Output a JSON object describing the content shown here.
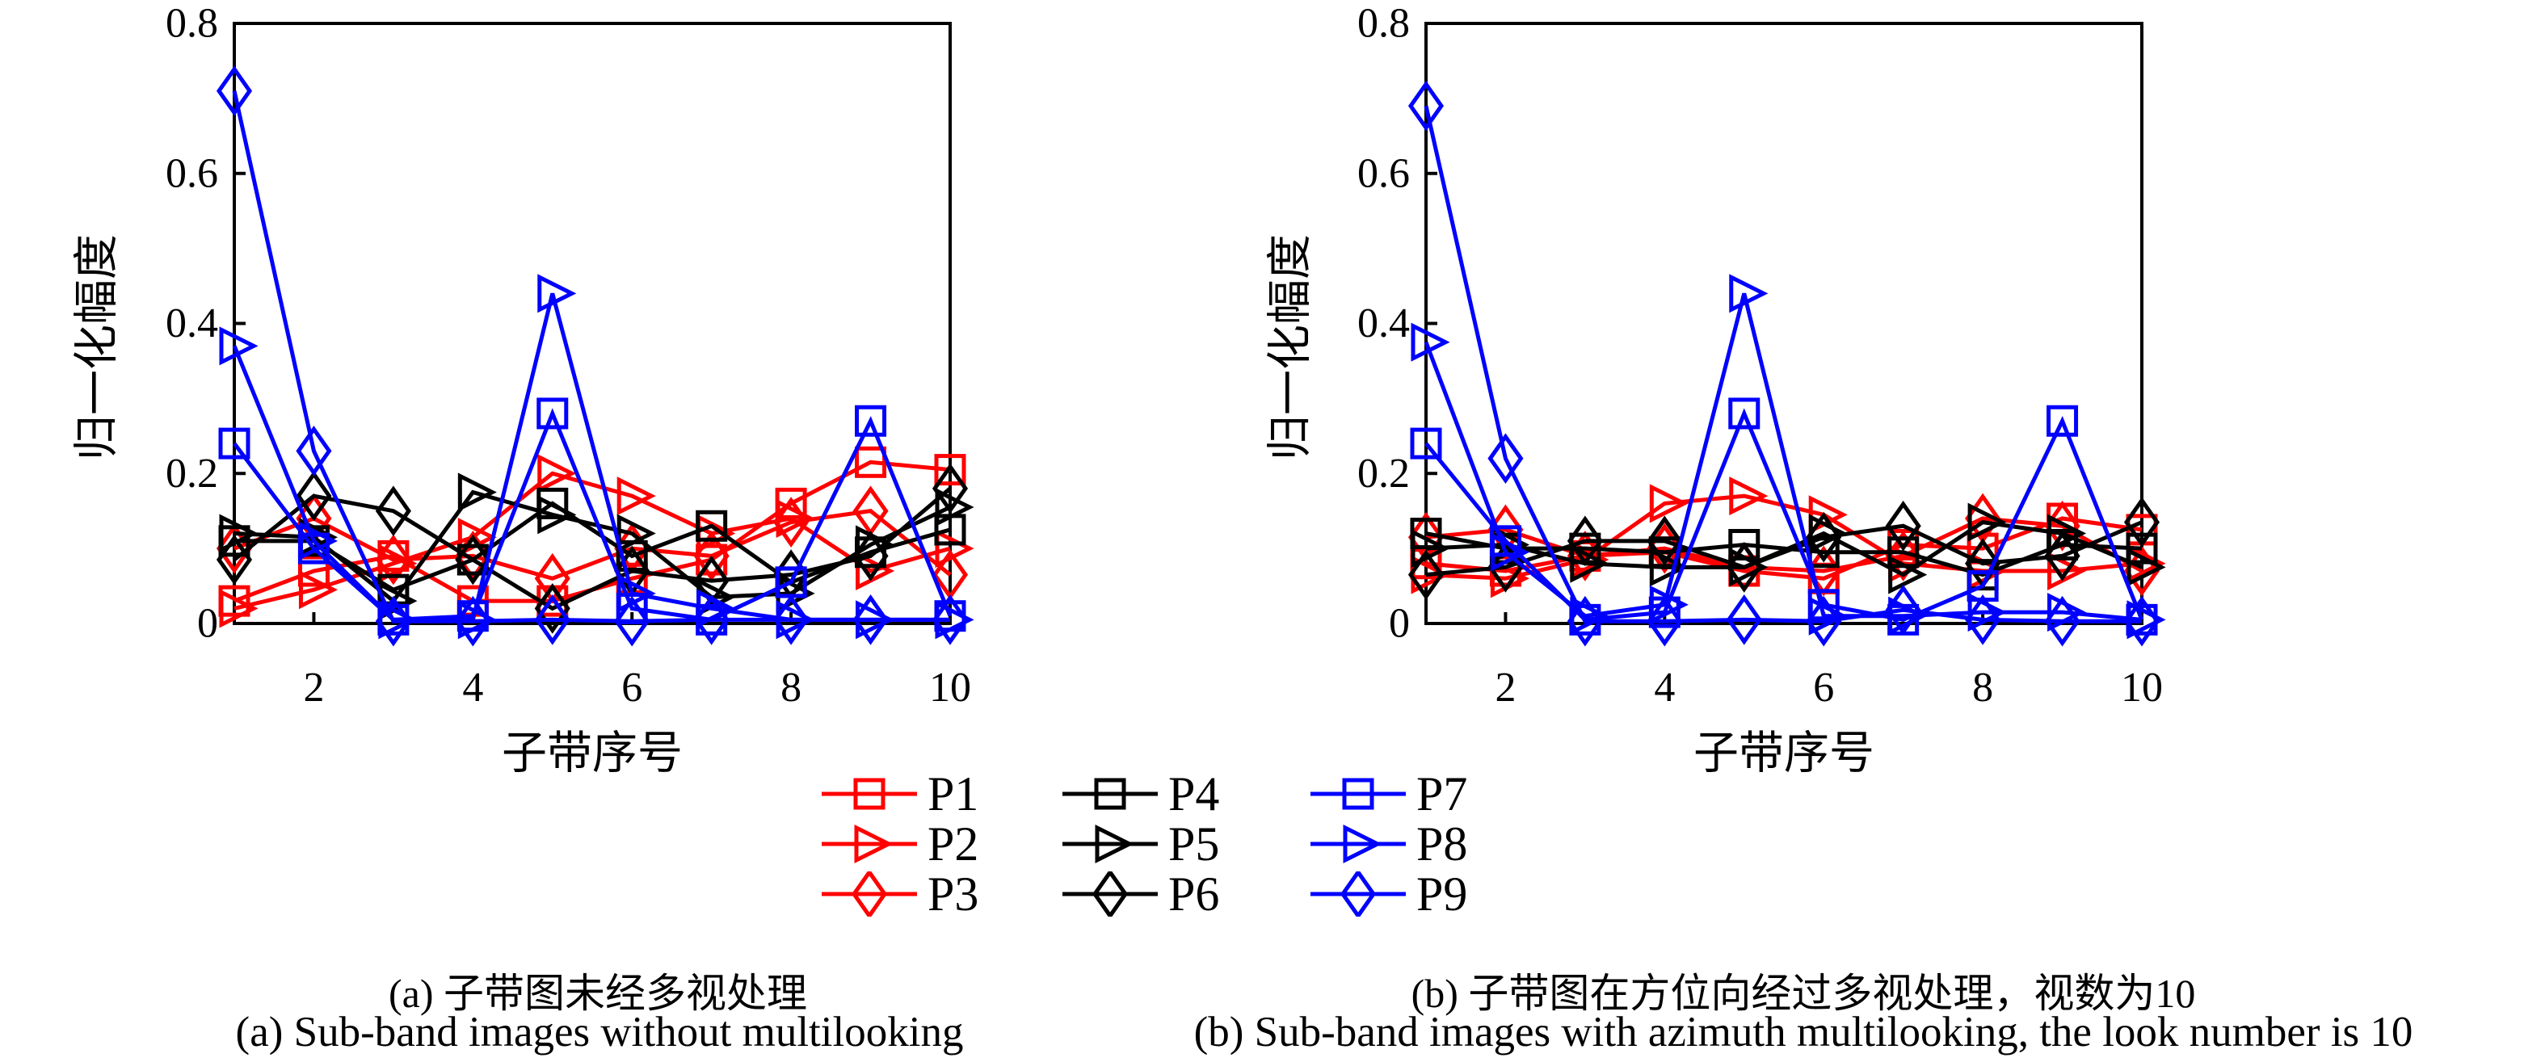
{
  "figure": {
    "background": "#ffffff",
    "colors": {
      "red": "#ff0000",
      "black": "#000000",
      "blue": "#0000ff"
    },
    "axis_color": "#000000",
    "legend": {
      "items": [
        {
          "label": "P1",
          "color": "red",
          "marker": "square"
        },
        {
          "label": "P4",
          "color": "black",
          "marker": "square"
        },
        {
          "label": "P7",
          "color": "blue",
          "marker": "square"
        },
        {
          "label": "P2",
          "color": "red",
          "marker": "triangle"
        },
        {
          "label": "P5",
          "color": "black",
          "marker": "triangle"
        },
        {
          "label": "P8",
          "color": "blue",
          "marker": "triangle"
        },
        {
          "label": "P3",
          "color": "red",
          "marker": "diamond"
        },
        {
          "label": "P6",
          "color": "black",
          "marker": "diamond"
        },
        {
          "label": "P9",
          "color": "blue",
          "marker": "diamond"
        }
      ]
    },
    "charts": [
      {
        "ylabel": "归一化幅度",
        "xlabel": "子带序号"
      },
      {
        "ylabel": "归一化幅度",
        "xlabel": "子带序号"
      }
    ],
    "captions": {
      "a_cn": "(a) 子带图未经多视处理",
      "a_en": "(a) Sub-band images without multilooking",
      "b_cn": "(b) 子带图在方位向经过多视处理，视数为10",
      "b_en": "(b) Sub-band images with azimuth multilooking, the look number is 10"
    }
  },
  "chart_data": [
    {
      "type": "line",
      "title": "(a) Sub-band images without multilooking",
      "xlabel": "子带序号",
      "ylabel": "归一化幅度",
      "x": [
        1,
        2,
        3,
        4,
        5,
        6,
        7,
        8,
        9,
        10
      ],
      "xticks": [
        2,
        4,
        6,
        8,
        10
      ],
      "yticks": [
        0,
        0.2,
        0.4,
        0.6,
        0.8
      ],
      "ytick_labels": [
        "0",
        "0.2",
        "0.4",
        "0.6",
        "0.8"
      ],
      "ylim": [
        0,
        0.8
      ],
      "grid": false,
      "legend_position": "below",
      "series": [
        {
          "name": "P1",
          "color": "red",
          "marker": "square",
          "values": [
            0.03,
            0.07,
            0.09,
            0.03,
            0.03,
            0.06,
            0.085,
            0.16,
            0.215,
            0.205
          ]
        },
        {
          "name": "P2",
          "color": "red",
          "marker": "triangle",
          "values": [
            0.02,
            0.045,
            0.08,
            0.115,
            0.2,
            0.17,
            0.12,
            0.14,
            0.07,
            0.1
          ]
        },
        {
          "name": "P3",
          "color": "red",
          "marker": "diamond",
          "values": [
            0.1,
            0.14,
            0.085,
            0.09,
            0.06,
            0.1,
            0.09,
            0.135,
            0.15,
            0.065
          ]
        },
        {
          "name": "P4",
          "color": "black",
          "marker": "square",
          "values": [
            0.11,
            0.11,
            0.045,
            0.085,
            0.16,
            0.09,
            0.13,
            0.055,
            0.095,
            0.125
          ]
        },
        {
          "name": "P5",
          "color": "black",
          "marker": "triangle",
          "values": [
            0.12,
            0.115,
            0.03,
            0.175,
            0.145,
            0.12,
            0.035,
            0.04,
            0.105,
            0.155
          ]
        },
        {
          "name": "P6",
          "color": "black",
          "marker": "diamond",
          "values": [
            0.085,
            0.17,
            0.15,
            0.085,
            0.02,
            0.07,
            0.057,
            0.065,
            0.09,
            0.18
          ]
        },
        {
          "name": "P7",
          "color": "blue",
          "marker": "square",
          "values": [
            0.24,
            0.1,
            0.005,
            0.01,
            0.28,
            0.02,
            0.005,
            0.055,
            0.27,
            0.01
          ]
        },
        {
          "name": "P8",
          "color": "blue",
          "marker": "triangle",
          "values": [
            0.37,
            0.11,
            0.005,
            0.005,
            0.44,
            0.04,
            0.02,
            0.005,
            0.005,
            0.005
          ]
        },
        {
          "name": "P9",
          "color": "blue",
          "marker": "diamond",
          "values": [
            0.71,
            0.23,
            0.003,
            0.003,
            0.005,
            0.003,
            0.005,
            0.005,
            0.005,
            0.005
          ]
        }
      ]
    },
    {
      "type": "line",
      "title": "(b) Sub-band images with azimuth multilooking, the look number is 10",
      "xlabel": "子带序号",
      "ylabel": "归一化幅度",
      "x": [
        1,
        2,
        3,
        4,
        5,
        6,
        7,
        8,
        9,
        10
      ],
      "xticks": [
        2,
        4,
        6,
        8,
        10
      ],
      "yticks": [
        0,
        0.2,
        0.4,
        0.6,
        0.8
      ],
      "ytick_labels": [
        "0",
        "0.2",
        "0.4",
        "0.6",
        "0.8"
      ],
      "ylim": [
        0,
        0.8
      ],
      "grid": false,
      "legend_position": "below",
      "series": [
        {
          "name": "P1",
          "color": "red",
          "marker": "square",
          "values": [
            0.08,
            0.07,
            0.09,
            0.095,
            0.07,
            0.06,
            0.105,
            0.1,
            0.14,
            0.125
          ]
        },
        {
          "name": "P2",
          "color": "red",
          "marker": "triangle",
          "values": [
            0.065,
            0.06,
            0.085,
            0.16,
            0.17,
            0.145,
            0.08,
            0.07,
            0.07,
            0.08
          ]
        },
        {
          "name": "P3",
          "color": "red",
          "marker": "diamond",
          "values": [
            0.115,
            0.125,
            0.09,
            0.1,
            0.075,
            0.07,
            0.09,
            0.14,
            0.13,
            0.07
          ]
        },
        {
          "name": "P4",
          "color": "black",
          "marker": "square",
          "values": [
            0.12,
            0.1,
            0.1,
            0.095,
            0.105,
            0.095,
            0.095,
            0.065,
            0.105,
            0.1
          ]
        },
        {
          "name": "P5",
          "color": "black",
          "marker": "triangle",
          "values": [
            0.1,
            0.105,
            0.08,
            0.075,
            0.075,
            0.12,
            0.065,
            0.135,
            0.12,
            0.075
          ]
        },
        {
          "name": "P6",
          "color": "black",
          "marker": "diamond",
          "values": [
            0.065,
            0.075,
            0.11,
            0.11,
            0.075,
            0.115,
            0.13,
            0.08,
            0.09,
            0.135
          ]
        },
        {
          "name": "P7",
          "color": "blue",
          "marker": "square",
          "values": [
            0.24,
            0.11,
            0.005,
            0.015,
            0.28,
            0.025,
            0.005,
            0.05,
            0.27,
            0.005
          ]
        },
        {
          "name": "P8",
          "color": "blue",
          "marker": "triangle",
          "values": [
            0.375,
            0.095,
            0.01,
            0.025,
            0.44,
            0.01,
            0.01,
            0.015,
            0.015,
            0.005
          ]
        },
        {
          "name": "P9",
          "color": "blue",
          "marker": "diamond",
          "values": [
            0.69,
            0.22,
            0.003,
            0.003,
            0.005,
            0.003,
            0.018,
            0.005,
            0.003,
            0.003
          ]
        }
      ]
    }
  ]
}
